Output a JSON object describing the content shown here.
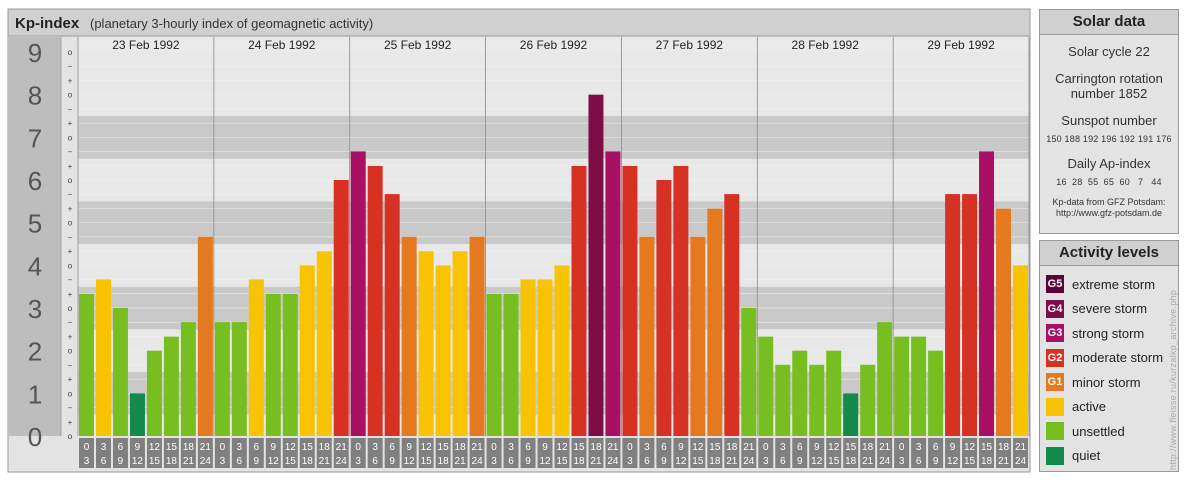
{
  "header": {
    "title": "Kp-index",
    "subtitle": "(planetary 3-hourly index of geomagnetic activity)"
  },
  "chart_data": {
    "type": "bar",
    "y_ticks": [
      "0",
      "1",
      "2",
      "3",
      "4",
      "5",
      "6",
      "7",
      "8",
      "9"
    ],
    "ylim": [
      0,
      9
    ],
    "minor_tick_labels": [
      "o",
      "+",
      "−"
    ],
    "interval_start_labels": [
      "0",
      "3",
      "6",
      "9",
      "12",
      "15",
      "18",
      "21"
    ],
    "interval_end_labels": [
      "3",
      "6",
      "9",
      "12",
      "15",
      "18",
      "21",
      "24"
    ],
    "days": [
      {
        "date": "23 Feb 1992",
        "values": [
          3.33,
          3.67,
          3.0,
          1.0,
          2.0,
          2.33,
          2.67,
          4.67
        ]
      },
      {
        "date": "24 Feb 1992",
        "values": [
          2.67,
          2.67,
          3.67,
          3.33,
          3.33,
          4.0,
          4.33,
          6.0
        ]
      },
      {
        "date": "25 Feb 1992",
        "values": [
          6.67,
          6.33,
          5.67,
          4.67,
          4.33,
          4.0,
          4.33,
          4.67
        ]
      },
      {
        "date": "26 Feb 1992",
        "values": [
          3.33,
          3.33,
          3.67,
          3.67,
          4.0,
          6.33,
          8.0,
          6.67
        ]
      },
      {
        "date": "27 Feb 1992",
        "values": [
          6.33,
          4.67,
          6.0,
          6.33,
          4.67,
          5.33,
          5.67,
          3.0
        ]
      },
      {
        "date": "28 Feb 1992",
        "values": [
          2.33,
          1.67,
          2.0,
          1.67,
          2.0,
          1.0,
          1.67,
          2.67
        ]
      },
      {
        "date": "29 Feb 1992",
        "values": [
          2.33,
          2.33,
          2.0,
          5.67,
          5.67,
          6.67,
          5.33,
          4.0
        ]
      }
    ]
  },
  "colors": {
    "quiet": "#138a4a",
    "unsettled": "#77bf21",
    "active": "#f8c303",
    "minor_storm": "#e5791f",
    "moderate_storm": "#d73123",
    "strong_storm": "#a90f63",
    "severe_storm": "#7d0d47",
    "extreme_storm": "#5a0437"
  },
  "solar": {
    "title": "Solar data",
    "cycle": "Solar cycle 22",
    "carrington_label": "Carrington rotation",
    "carrington_number": "number 1852",
    "sunspot_label": "Sunspot number",
    "sunspot_values": "150 188 192 196 192 191 176",
    "ap_label": "Daily Ap-index",
    "ap_values": "16  28  55  65  60   7   44",
    "source_line1": "Kp-data from  GFZ Potsdam:",
    "source_line2": "http://www.gfz-potsdam.de"
  },
  "activity": {
    "title": "Activity levels",
    "levels": [
      {
        "badge": "G5",
        "label": "extreme storm",
        "color": "#5a0437"
      },
      {
        "badge": "G4",
        "label": "severe storm",
        "color": "#7d0d47"
      },
      {
        "badge": "G3",
        "label": "strong storm",
        "color": "#a90f63"
      },
      {
        "badge": "G2",
        "label": "moderate storm",
        "color": "#d73123"
      },
      {
        "badge": "G1",
        "label": "minor storm",
        "color": "#e5791f"
      },
      {
        "badge": "",
        "label": "active",
        "color": "#f8c303"
      },
      {
        "badge": "",
        "label": "unsettled",
        "color": "#77bf21"
      },
      {
        "badge": "",
        "label": "quiet",
        "color": "#138a4a"
      }
    ]
  },
  "watermark": "http://www.fleisse.ru/kurzalkp_archive.php"
}
